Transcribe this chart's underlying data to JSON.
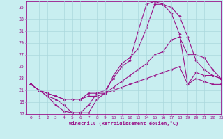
{
  "xlabel": "Windchill (Refroidissement éolien,°C)",
  "ylabel": "",
  "xlim": [
    -0.5,
    23
  ],
  "ylim": [
    17,
    36
  ],
  "yticks": [
    17,
    19,
    21,
    23,
    25,
    27,
    29,
    31,
    33,
    35
  ],
  "xticks": [
    0,
    1,
    2,
    3,
    4,
    5,
    6,
    7,
    8,
    9,
    10,
    11,
    12,
    13,
    14,
    15,
    16,
    17,
    18,
    19,
    20,
    21,
    22,
    23
  ],
  "bg_color": "#c8eef0",
  "line_color": "#991188",
  "grid_color": "#aad8dd",
  "lines": [
    {
      "x": [
        0,
        1,
        2,
        3,
        4,
        5,
        6,
        7,
        8,
        9,
        10,
        11,
        12,
        13,
        14,
        15,
        16,
        17,
        18,
        19,
        20,
        21,
        22,
        23
      ],
      "y": [
        22,
        21,
        20,
        18.5,
        17.5,
        17.2,
        17.2,
        18.5,
        20.5,
        21,
        23,
        25,
        26,
        31,
        35.5,
        36,
        35.5,
        34,
        30.5,
        22,
        24,
        23.5,
        23.5,
        23
      ]
    },
    {
      "x": [
        0,
        1,
        2,
        3,
        4,
        5,
        6,
        7,
        8,
        9,
        10,
        11,
        12,
        13,
        14,
        15,
        16,
        17,
        18,
        19,
        20,
        21,
        22,
        23
      ],
      "y": [
        22,
        21,
        20,
        19.5,
        18.5,
        17.2,
        17.2,
        17.2,
        19.5,
        20.5,
        23.5,
        25.5,
        26.5,
        28,
        31.5,
        35.5,
        35.5,
        35,
        33.5,
        30,
        26,
        24.5,
        23.5,
        23
      ]
    },
    {
      "x": [
        0,
        1,
        2,
        3,
        4,
        5,
        6,
        7,
        8,
        9,
        10,
        11,
        12,
        13,
        14,
        15,
        16,
        17,
        18,
        19,
        20,
        21,
        22,
        23
      ],
      "y": [
        22,
        21,
        20.5,
        20,
        19.5,
        19.5,
        19.5,
        20.5,
        20.5,
        20.5,
        21.5,
        22.5,
        23.5,
        24.5,
        25.5,
        27,
        27.5,
        29.5,
        30,
        27,
        27,
        26.5,
        24.5,
        23
      ]
    },
    {
      "x": [
        0,
        1,
        2,
        3,
        4,
        5,
        6,
        7,
        8,
        9,
        10,
        11,
        12,
        13,
        14,
        15,
        16,
        17,
        18,
        19,
        20,
        21,
        22,
        23
      ],
      "y": [
        22,
        21,
        20.5,
        20,
        19.5,
        19.5,
        19.5,
        20,
        20,
        20.5,
        21,
        21.5,
        22,
        22.5,
        23,
        23.5,
        24,
        24.5,
        25,
        22,
        23,
        22.5,
        22,
        22
      ]
    }
  ]
}
